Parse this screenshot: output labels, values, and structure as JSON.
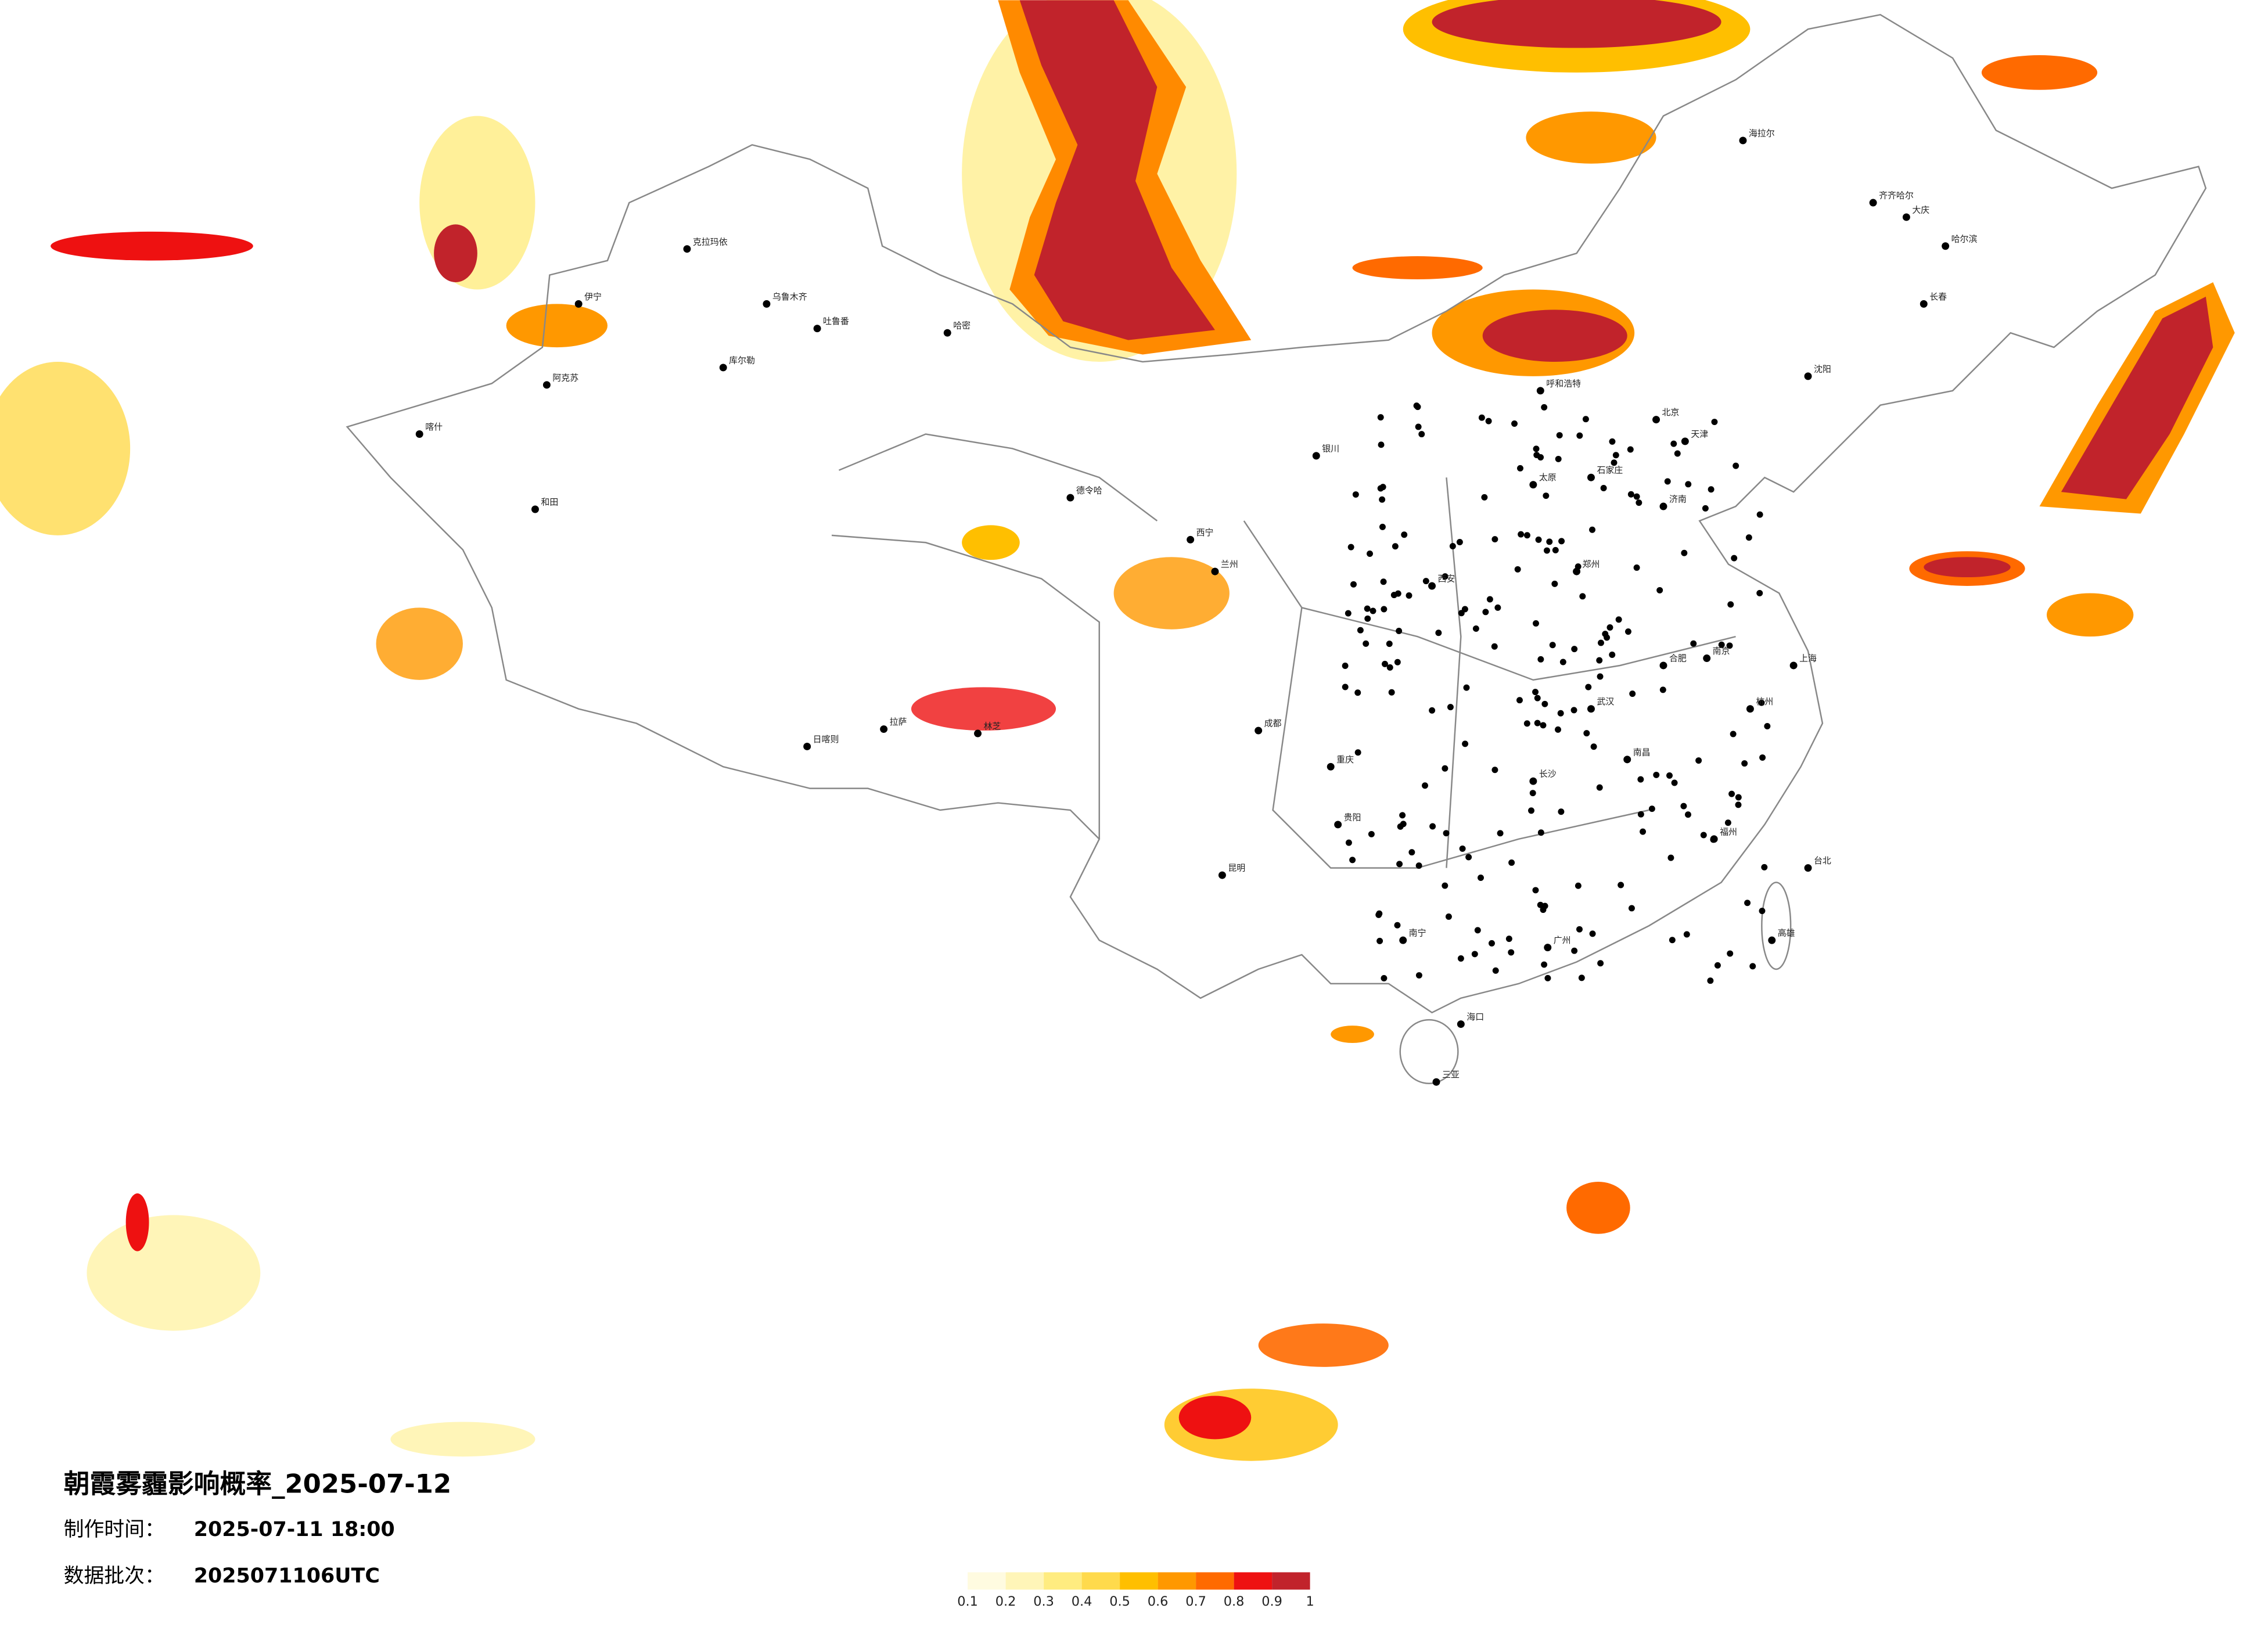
{
  "title": "朝霞雾霾影响概率_2025-07-12",
  "info": [
    {
      "label": "制作时间：",
      "value": "2025-07-11 18:00"
    },
    {
      "label": "数据批次：",
      "value": "2025071106UTC"
    }
  ],
  "legend": {
    "colors": [
      "#fffbe0",
      "#fff5b8",
      "#ffec80",
      "#ffda4c",
      "#ffbf00",
      "#ff9800",
      "#ff6a00",
      "#ee1111",
      "#c1232b"
    ],
    "ticks": [
      0.1,
      0.2,
      0.3,
      0.4,
      0.5,
      0.6,
      0.7,
      0.8,
      0.9,
      1
    ]
  },
  "cities": [
    "克拉玛依",
    "乌鲁木齐",
    "吐鲁番",
    "哈密",
    "库尔勒",
    "阿克苏",
    "喀什",
    "和田",
    "伊宁",
    "日喀则",
    "拉萨",
    "林芝",
    "德令哈",
    "西宁",
    "兰州",
    "银川",
    "成都",
    "重庆",
    "昆明",
    "贵阳",
    "南宁",
    "海口",
    "三亚",
    "广州",
    "长沙",
    "武汉",
    "南昌",
    "福州",
    "杭州",
    "上海",
    "南京",
    "合肥",
    "郑州",
    "济南",
    "石家庄",
    "北京",
    "天津",
    "太原",
    "呼和浩特",
    "西安",
    "沈阳",
    "长春",
    "哈尔滨",
    "齐齐哈尔",
    "大庆",
    "海拉尔",
    "台北",
    "高雄"
  ]
}
